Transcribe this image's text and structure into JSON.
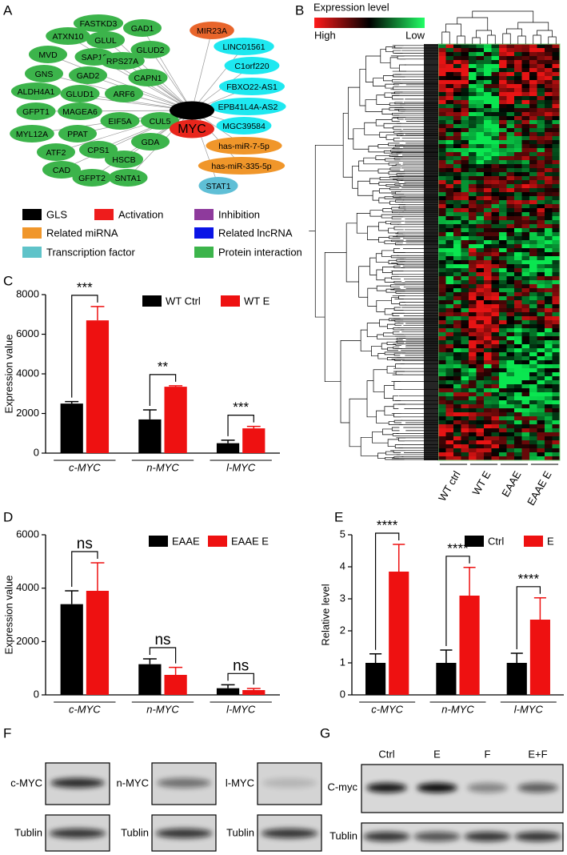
{
  "panel_labels": [
    "A",
    "B",
    "C",
    "D",
    "E",
    "F",
    "G"
  ],
  "network": {
    "center": [
      {
        "label": "GLS",
        "color": "#000000"
      },
      {
        "label": "MYC",
        "color": "#e8261c"
      }
    ],
    "nodes": [
      {
        "label": "FASTKD3",
        "color": "#3cb44b"
      },
      {
        "label": "GAD1",
        "color": "#3cb44b"
      },
      {
        "label": "ATXN10",
        "color": "#3cb44b"
      },
      {
        "label": "GLUL",
        "color": "#3cb44b"
      },
      {
        "label": "GLUD2",
        "color": "#3cb44b"
      },
      {
        "label": "MVD",
        "color": "#3cb44b"
      },
      {
        "label": "SAP18",
        "color": "#3cb44b"
      },
      {
        "label": "RPS27A",
        "color": "#3cb44b"
      },
      {
        "label": "GNS",
        "color": "#3cb44b"
      },
      {
        "label": "GAD2",
        "color": "#3cb44b"
      },
      {
        "label": "CAPN1",
        "color": "#3cb44b"
      },
      {
        "label": "ALDH4A1",
        "color": "#3cb44b"
      },
      {
        "label": "GLUD1",
        "color": "#3cb44b"
      },
      {
        "label": "ARF6",
        "color": "#3cb44b"
      },
      {
        "label": "GFPT1",
        "color": "#3cb44b"
      },
      {
        "label": "MAGEA6",
        "color": "#3cb44b"
      },
      {
        "label": "MYL12A",
        "color": "#3cb44b"
      },
      {
        "label": "PPAT",
        "color": "#3cb44b"
      },
      {
        "label": "EIF5A",
        "color": "#3cb44b"
      },
      {
        "label": "CUL5",
        "color": "#3cb44b"
      },
      {
        "label": "ATF2",
        "color": "#3cb44b"
      },
      {
        "label": "CPS1",
        "color": "#3cb44b"
      },
      {
        "label": "GDA",
        "color": "#3cb44b"
      },
      {
        "label": "CAD",
        "color": "#3cb44b"
      },
      {
        "label": "HSCB",
        "color": "#3cb44b"
      },
      {
        "label": "GFPT2",
        "color": "#3cb44b"
      },
      {
        "label": "SNTA1",
        "color": "#3cb44b"
      },
      {
        "label": "MIR23A",
        "color": "#e8652b"
      },
      {
        "label": "LINC01561",
        "color": "#1ee8f0"
      },
      {
        "label": "C1orf220",
        "color": "#1ee8f0"
      },
      {
        "label": "FBXO22-AS1",
        "color": "#1ee8f0"
      },
      {
        "label": "EPB41L4A-AS2",
        "color": "#1ee8f0"
      },
      {
        "label": "MGC39584",
        "color": "#1ee8f0"
      },
      {
        "label": "has-miR-7-5p",
        "color": "#f0962a"
      },
      {
        "label": "has-miR-335-5p",
        "color": "#f0962a"
      },
      {
        "label": "STAT1",
        "color": "#5fbfd6"
      }
    ],
    "legend": [
      {
        "label": "GLS",
        "color": "#000000"
      },
      {
        "label": "Activation",
        "color": "#ee1c1c"
      },
      {
        "label": "Inhibition",
        "color": "#8e3a9c"
      },
      {
        "label": "Related miRNA",
        "color": "#f0962a"
      },
      {
        "label": "Related lncRNA",
        "color": "#0a14e6"
      },
      {
        "label": "Transcription factor",
        "color": "#5fc3c9"
      },
      {
        "label": "Protein interaction",
        "color": "#3cb44b"
      }
    ]
  },
  "heatmap": {
    "title": "Expression level",
    "high_label": "High",
    "low_label": "Low",
    "columns": [
      "WT ctrl",
      "WT E",
      "EAAE",
      "EAAE E"
    ]
  },
  "chart_data": [
    {
      "type": "bar",
      "y_label": "Expression value",
      "categories": [
        "c-MYC",
        "n-MYC",
        "l-MYC"
      ],
      "series": [
        {
          "name": "WT Ctrl",
          "color": "#000000",
          "values": [
            2500,
            1700,
            500
          ],
          "errors": [
            100,
            480,
            150
          ]
        },
        {
          "name": "WT E",
          "color": "#ee1111",
          "values": [
            6700,
            3350,
            1250
          ],
          "errors": [
            700,
            50,
            100
          ]
        }
      ],
      "significance": [
        "***",
        "**",
        "***"
      ],
      "ylim": [
        0,
        8000
      ],
      "yticks": [
        0,
        2000,
        4000,
        6000,
        8000
      ],
      "legend": "upper right"
    },
    {
      "type": "bar",
      "y_label": "Expression value",
      "categories": [
        "c-MYC",
        "n-MYC",
        "l-MYC"
      ],
      "series": [
        {
          "name": "EAAE",
          "color": "#000000",
          "values": [
            3400,
            1150,
            250
          ],
          "errors": [
            500,
            200,
            130
          ]
        },
        {
          "name": "EAAE E",
          "color": "#ee1111",
          "values": [
            3900,
            750,
            180
          ],
          "errors": [
            1050,
            280,
            60
          ]
        }
      ],
      "significance": [
        "ns",
        "ns",
        "ns"
      ],
      "ylim": [
        0,
        6000
      ],
      "yticks": [
        0,
        2000,
        4000,
        6000
      ],
      "legend": "upper right"
    },
    {
      "type": "bar",
      "y_label": "Relative level",
      "categories": [
        "c-MYC",
        "n-MYC",
        "l-MYC"
      ],
      "series": [
        {
          "name": "Ctrl",
          "color": "#000000",
          "values": [
            1,
            1,
            1
          ],
          "errors": [
            0.28,
            0.4,
            0.3
          ]
        },
        {
          "name": "E",
          "color": "#ee1111",
          "values": [
            3.85,
            3.1,
            2.35
          ],
          "errors": [
            0.85,
            0.88,
            0.68
          ]
        }
      ],
      "significance": [
        "****",
        "****",
        "****"
      ],
      "ylim": [
        0,
        5
      ],
      "yticks": [
        0,
        1,
        2,
        3,
        4,
        5
      ],
      "legend": "upper right"
    }
  ],
  "blots_f": {
    "targets": [
      "c-MYC",
      "n-MYC",
      "l-MYC"
    ],
    "loading": [
      "Tublin",
      "Tublin",
      "Tublin"
    ]
  },
  "blots_g": {
    "lanes": [
      "Ctrl",
      "E",
      "F",
      "E+F"
    ],
    "target": "C-myc",
    "loading": "Tublin"
  }
}
